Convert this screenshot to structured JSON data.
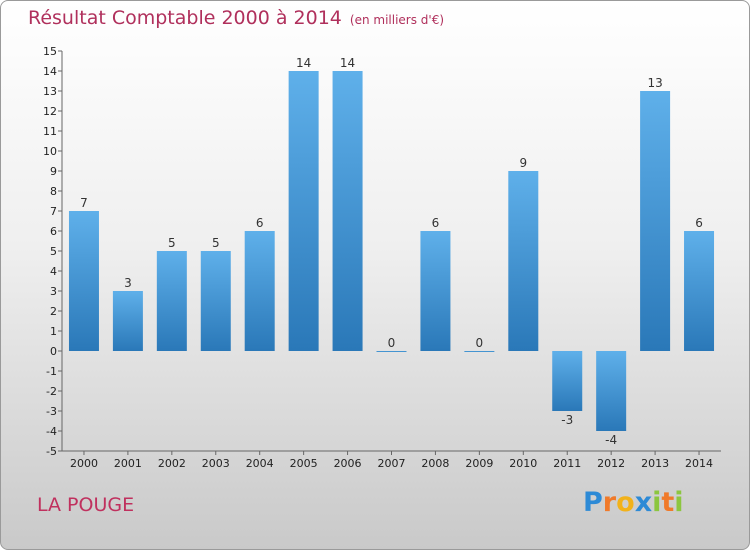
{
  "header": {
    "title": "Résultat Comptable 2000 à 2014",
    "subtitle": "(en milliers d'€)"
  },
  "commune": "LA POUGE",
  "logo": {
    "parts": [
      "P",
      "r",
      "o",
      "x",
      "i",
      "t",
      "i"
    ]
  },
  "colors": {
    "bar_top": "#5fb0ea",
    "bar_bottom": "#2a78b8",
    "title": "#b0305c"
  },
  "chart_data": {
    "type": "bar",
    "title": "Résultat Comptable 2000 à 2014",
    "ylabel": "en milliers d'€",
    "xlabel": "",
    "categories": [
      "2000",
      "2001",
      "2002",
      "2003",
      "2004",
      "2005",
      "2006",
      "2007",
      "2008",
      "2009",
      "2010",
      "2011",
      "2012",
      "2013",
      "2014"
    ],
    "values": [
      7,
      3,
      5,
      5,
      6,
      14,
      14,
      0,
      6,
      0,
      9,
      -3,
      -4,
      13,
      6
    ],
    "yticks": [
      "15",
      "14",
      "13",
      "12",
      "11",
      "10",
      "9",
      "8",
      "7",
      "6",
      "5",
      "4",
      "3",
      "2",
      "1",
      "0",
      "-1",
      "-2",
      "-3",
      "-4",
      "-5"
    ],
    "ylim": [
      -5,
      15
    ],
    "grid": false
  }
}
